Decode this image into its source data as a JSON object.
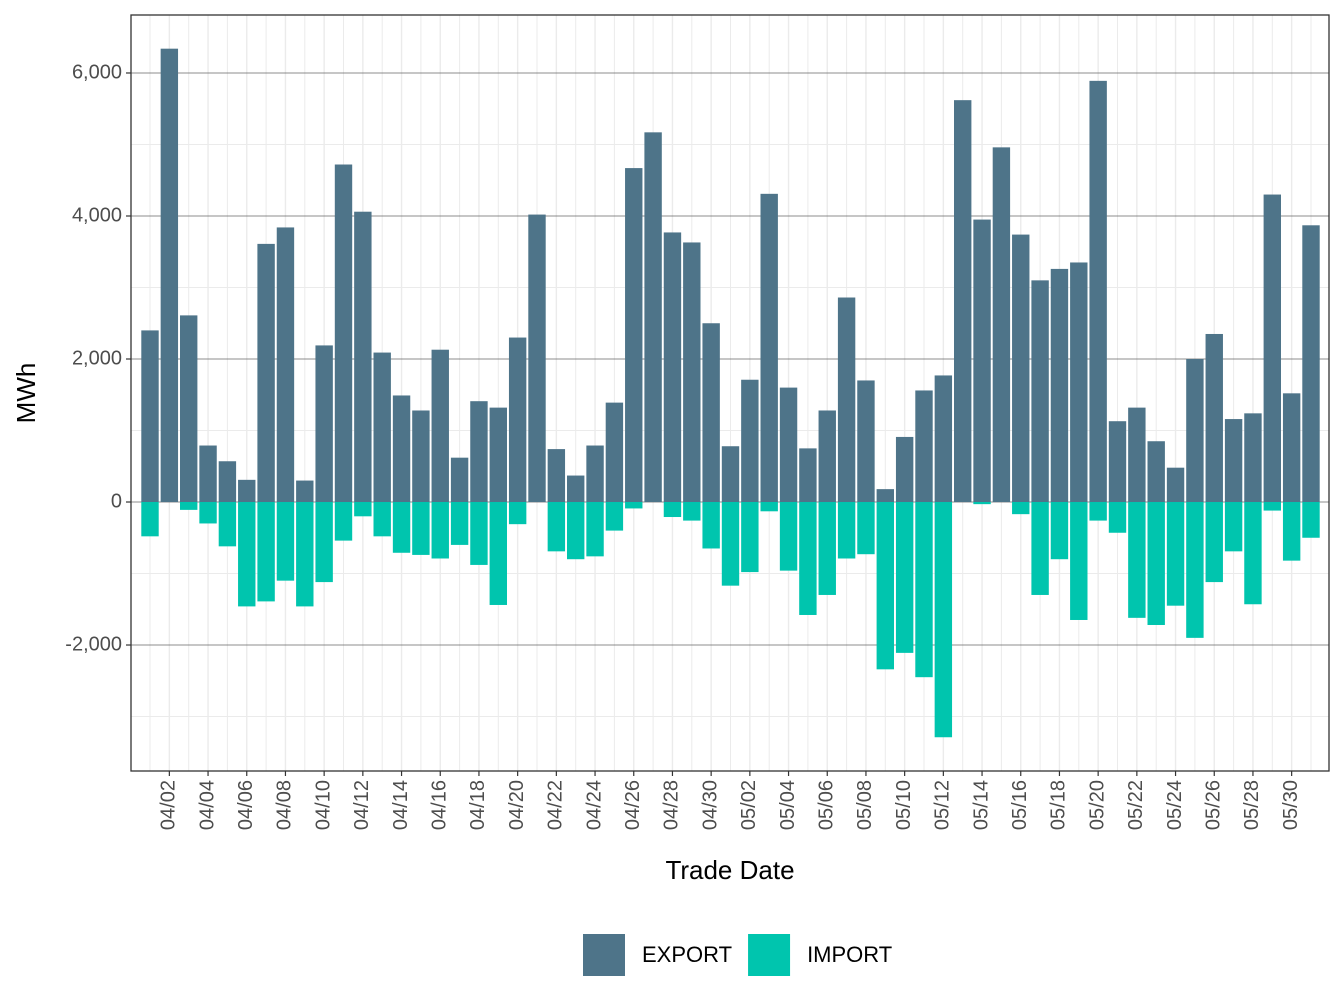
{
  "chart_data": {
    "type": "bar",
    "x_label": "Trade Date",
    "y_label": "MWh",
    "categories": [
      null,
      "04/02",
      null,
      "04/04",
      null,
      "04/06",
      null,
      "04/08",
      null,
      "04/10",
      null,
      "04/12",
      null,
      "04/14",
      null,
      "04/16",
      null,
      "04/18",
      null,
      "04/20",
      null,
      "04/22",
      null,
      "04/24",
      null,
      "04/26",
      null,
      "04/28",
      null,
      "04/30",
      null,
      "05/02",
      null,
      "05/04",
      null,
      "05/06",
      null,
      "05/08",
      null,
      "05/10",
      null,
      "05/12",
      null,
      "05/14",
      null,
      "05/16",
      null,
      "05/18",
      null,
      "05/20",
      null,
      "05/22",
      null,
      "05/24",
      null,
      "05/26",
      null,
      "05/28",
      null,
      "05/30",
      null
    ],
    "series": [
      {
        "name": "EXPORT",
        "color": "#4e7489",
        "values": [
          2400,
          6340,
          2610,
          790,
          570,
          310,
          3610,
          3840,
          300,
          2190,
          4720,
          4060,
          2090,
          1490,
          1280,
          2130,
          620,
          1410,
          1320,
          2300,
          4020,
          740,
          370,
          790,
          1390,
          4670,
          5170,
          3770,
          3630,
          2500,
          780,
          1710,
          4310,
          1600,
          750,
          1280,
          2860,
          1700,
          180,
          910,
          1560,
          1770,
          5620,
          3950,
          4960,
          3740,
          3100,
          3260,
          3350,
          5890,
          1130,
          1320,
          850,
          480,
          2000,
          2350,
          1160,
          1240,
          4300,
          1520,
          3870
        ]
      },
      {
        "name": "IMPORT",
        "color": "#00c5ae",
        "values": [
          -480,
          0,
          -110,
          -300,
          -620,
          -1460,
          -1390,
          -1100,
          -1460,
          -1120,
          -540,
          -200,
          -480,
          -710,
          -740,
          -790,
          -600,
          -880,
          -1440,
          -310,
          0,
          -690,
          -800,
          -760,
          -400,
          -90,
          0,
          -210,
          -260,
          -650,
          -1170,
          -980,
          -130,
          -960,
          -1580,
          -1300,
          -790,
          -730,
          -2340,
          -2110,
          -2450,
          -3290,
          0,
          -30,
          0,
          -170,
          -1300,
          -800,
          -1650,
          -260,
          -430,
          -1620,
          -1720,
          -1450,
          -1900,
          -1120,
          -690,
          -1430,
          -120,
          -820,
          -500
        ]
      }
    ],
    "ylim": [
      -3762,
      6811
    ],
    "yticks": [
      {
        "value": -2000,
        "label": "-2,000"
      },
      0,
      {
        "value": 2000,
        "label": "2,000"
      },
      {
        "value": 4000,
        "label": "4,000"
      },
      {
        "value": 6000,
        "label": "6,000"
      }
    ],
    "grid": true,
    "legend": "bottom"
  }
}
